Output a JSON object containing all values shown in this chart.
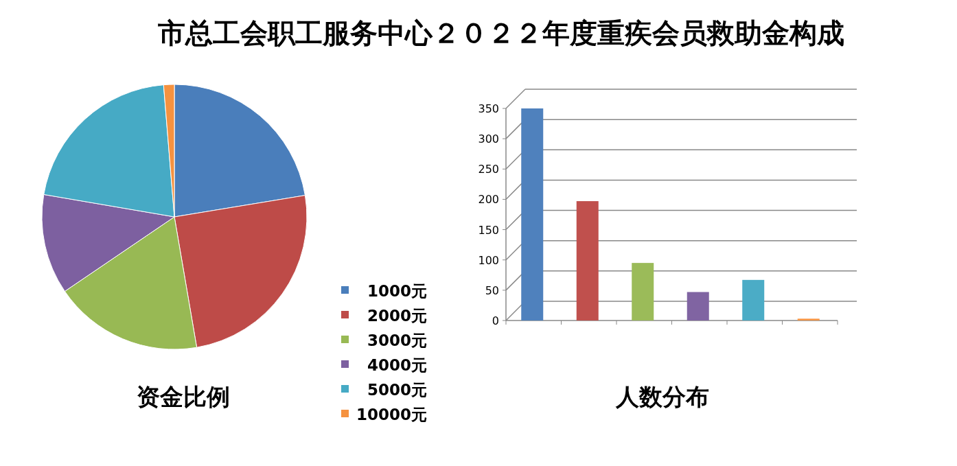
{
  "chart_data": [
    {
      "type": "pie",
      "title": "市总工会职工服务中心２０２２年度重疾会员救助金构成",
      "subtitle": "资金比例",
      "categories": [
        "1000元",
        "2000元",
        "3000元",
        "4000元",
        "5000元",
        "10000元"
      ],
      "values": [
        22.4,
        24.9,
        18.2,
        12.2,
        21.0,
        1.3
      ],
      "colors": [
        "#4a7ebb",
        "#be4b48",
        "#98b954",
        "#7d60a0",
        "#46aac5",
        "#f59240"
      ],
      "legend": "bottom right"
    },
    {
      "type": "bar",
      "title": "人数分布",
      "categories": [
        null,
        null,
        null,
        null,
        null,
        null
      ],
      "values": [
        350,
        197,
        95,
        47,
        67,
        3
      ],
      "colors": [
        "#4f81bd",
        "#c0504d",
        "#9bbb59",
        "#8064a2",
        "#4bacc6",
        "#f79646"
      ],
      "ylim": [
        0,
        350
      ],
      "yticks": [
        0,
        50,
        100,
        150,
        200,
        250,
        300,
        350
      ],
      "grid": "y"
    }
  ]
}
